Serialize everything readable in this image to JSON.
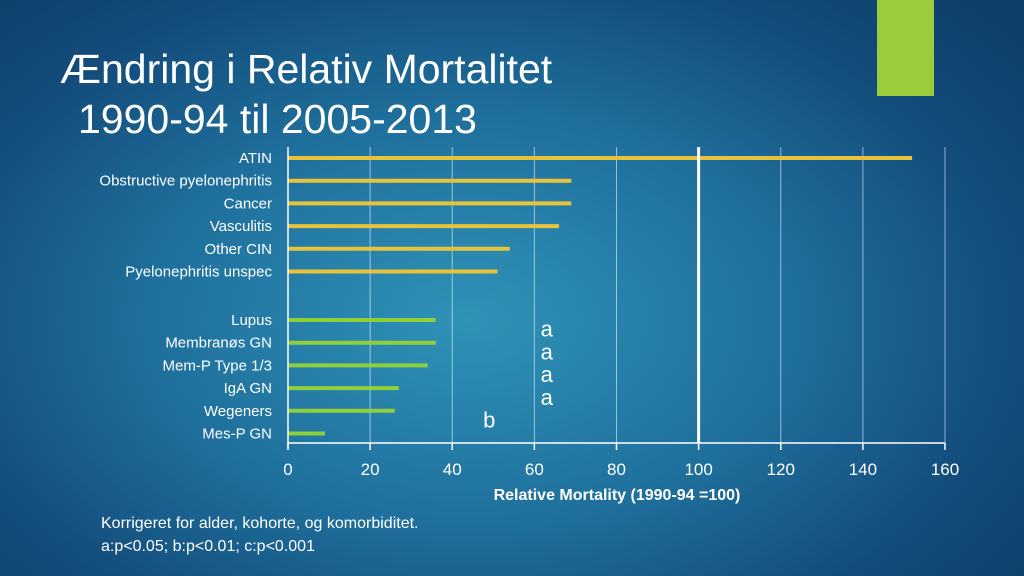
{
  "slide": {
    "title_line1": "Ændring i Relativ Mortalitet",
    "title_line2": "1990-94 til 2005-2013",
    "footnote_line1": "Korrigeret for alder, kohorte, og komorbiditet.",
    "footnote_line2": "a:p<0.05; b:p<0.01; c:p<0.001",
    "accent_color": "#9ccb3b"
  },
  "chart_data": {
    "type": "bar",
    "orientation": "horizontal",
    "xlabel": "Relative Mortality (1990-94 =100)",
    "xlim": [
      0,
      160
    ],
    "xticks": [
      0,
      20,
      40,
      60,
      80,
      100,
      120,
      140,
      160
    ],
    "grid": true,
    "reference_line": 100,
    "groups": [
      {
        "color": "#e8c33a",
        "categories": [
          "ATIN",
          "Obstructive pyelonephritis",
          "Cancer",
          "Vasculitis",
          "Other CIN",
          "Pyelonephritis unspec"
        ],
        "values": [
          152,
          69,
          69,
          66,
          54,
          51
        ]
      },
      {
        "color": "#8fcf3c",
        "categories": [
          "Lupus",
          "Membranøs GN",
          "Mem-P Type 1/3",
          "IgA GN",
          "Wegeners",
          "Mes-P GN"
        ],
        "values": [
          36,
          36,
          34,
          27,
          26,
          9
        ]
      }
    ],
    "annotations": [
      {
        "text": "a",
        "x": 63,
        "category": "Membranøs GN"
      },
      {
        "text": "a",
        "x": 63,
        "category": "Mem-P Type 1/3"
      },
      {
        "text": "a",
        "x": 63,
        "category": "IgA GN"
      },
      {
        "text": "a",
        "x": 63,
        "category": "Wegeners"
      },
      {
        "text": "b",
        "x": 49,
        "category": "Mes-P GN"
      }
    ]
  }
}
